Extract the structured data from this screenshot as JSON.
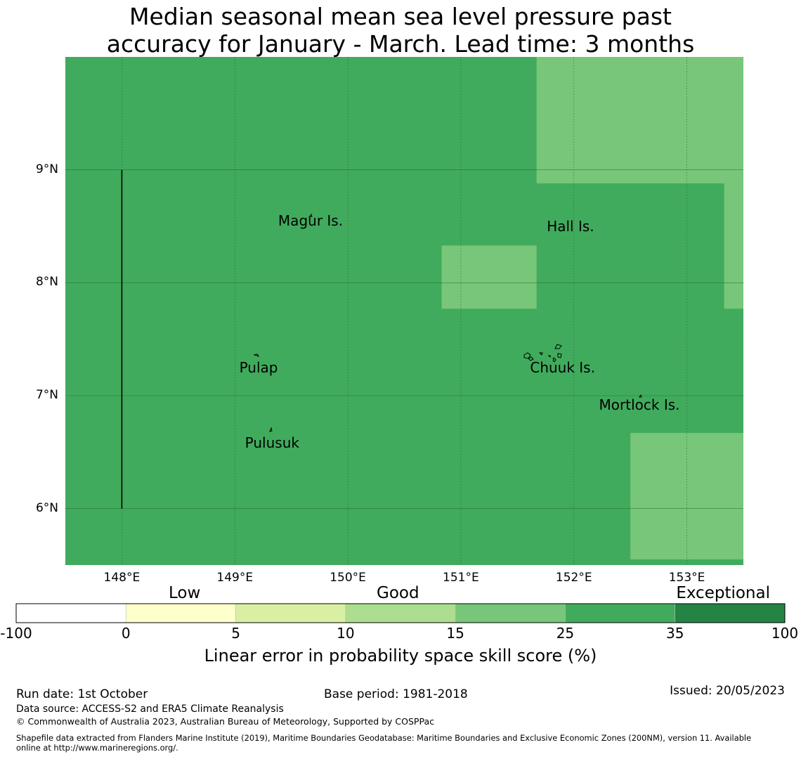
{
  "title": {
    "line1": "Median seasonal mean sea level pressure past",
    "line2": "accuracy for January - March. Lead time: 3 months"
  },
  "map": {
    "lon_range": [
      147.5,
      153.5
    ],
    "lat_range": [
      5.5,
      10.0
    ],
    "base_color": "#41ab5d",
    "lighter_color": "#78c679",
    "grid_color": "#1b5e20",
    "lighter_regions": [
      {
        "lon": [
          151.67,
          153.5
        ],
        "lat": [
          8.88,
          10.0
        ]
      },
      {
        "lon": [
          153.33,
          153.5
        ],
        "lat": [
          7.77,
          8.88
        ]
      },
      {
        "lon": [
          150.83,
          151.67
        ],
        "lat": [
          7.77,
          8.33
        ]
      },
      {
        "lon": [
          152.5,
          153.5
        ],
        "lat": [
          5.55,
          6.67
        ]
      }
    ],
    "boundary_line": {
      "lon": 148.0,
      "lat": [
        6.0,
        9.0
      ]
    },
    "lat_ticks": [
      {
        "value": 9,
        "label": "9°N"
      },
      {
        "value": 8,
        "label": "8°N"
      },
      {
        "value": 7,
        "label": "7°N"
      },
      {
        "value": 6,
        "label": "6°N"
      }
    ],
    "lon_ticks": [
      {
        "value": 148,
        "label": "148°E"
      },
      {
        "value": 149,
        "label": "149°E"
      },
      {
        "value": 150,
        "label": "150°E"
      },
      {
        "value": 151,
        "label": "151°E"
      },
      {
        "value": 152,
        "label": "152°E"
      },
      {
        "value": 153,
        "label": "153°E"
      }
    ],
    "places": [
      {
        "name": "Magur Is.",
        "lon": 149.67,
        "lat": 8.55
      },
      {
        "name": "Hall Is.",
        "lon": 151.97,
        "lat": 8.5
      },
      {
        "name": "Pulap",
        "lon": 149.21,
        "lat": 7.25
      },
      {
        "name": "Chuuk Is.",
        "lon": 151.9,
        "lat": 7.25
      },
      {
        "name": "Mortlock Is.",
        "lon": 152.58,
        "lat": 6.92
      },
      {
        "name": "Pulusuk",
        "lon": 149.33,
        "lat": 6.58
      }
    ]
  },
  "colorbar": {
    "categories": [
      {
        "label": "Low"
      },
      {
        "label": "Good"
      },
      {
        "label": "Exceptional"
      }
    ],
    "colors": [
      "#ffffff",
      "#ffffcc",
      "#d9f0a3",
      "#addd8e",
      "#78c679",
      "#41ab5d",
      "#238443"
    ],
    "ticks": [
      "-100",
      "0",
      "5",
      "10",
      "15",
      "25",
      "35",
      "100"
    ],
    "title": "Linear error in probability space skill score (%)"
  },
  "footer": {
    "run_date": "Run date: 1st October",
    "base_period": "Base period: 1981-2018",
    "issued": "Issued: 20/05/2023",
    "data_source": "Data source: ACCESS-S2 and ERA5 Climate Reanalysis",
    "copyright": "© Commonwealth of Australia 2023, Australian Bureau of Meteorology, Supported by COSPPac",
    "shapefile_line1": "Shapefile data extracted from Flanders Marine Institute (2019), Maritime Boundaries Geodatabase: Maritime Boundaries and Exclusive Economic Zones (200NM), version 11. Available",
    "shapefile_line2": "online at http://www.marineregions.org/."
  }
}
